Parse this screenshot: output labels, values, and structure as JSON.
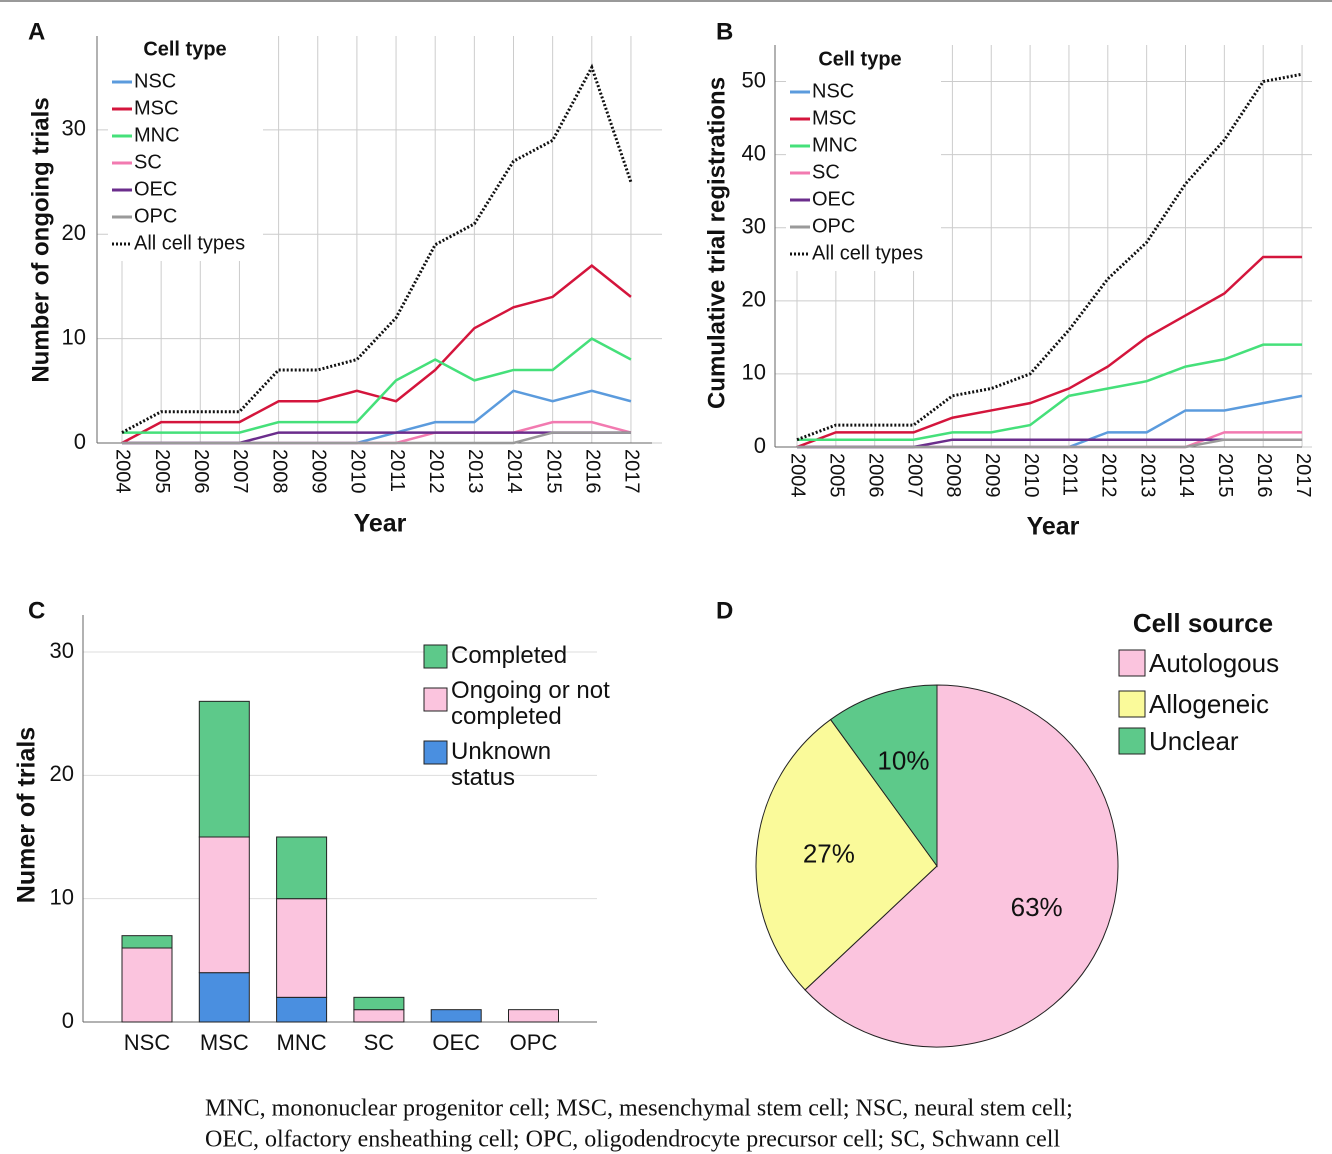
{
  "chart_data": [
    {
      "type": "line",
      "label": "A",
      "xlabel": "Year",
      "ylabel": "Number of ongoing trials",
      "legend_title": "Cell type",
      "grid": true,
      "categories": [
        "2004",
        "2005",
        "2006",
        "2007",
        "2008",
        "2009",
        "2010",
        "2011",
        "2012",
        "2013",
        "2014",
        "2015",
        "2016",
        "2017"
      ],
      "ylim": [
        0,
        39
      ],
      "yticks": [
        0,
        10,
        20,
        30
      ],
      "series": [
        {
          "name": "NSC",
          "color": "#5b9bdd",
          "values": [
            0,
            0,
            0,
            0,
            0,
            0,
            0,
            1,
            2,
            2,
            5,
            4,
            5,
            4
          ]
        },
        {
          "name": "MSC",
          "color": "#d4153c",
          "values": [
            0,
            2,
            2,
            2,
            4,
            4,
            5,
            4,
            7,
            11,
            13,
            14,
            17,
            14
          ]
        },
        {
          "name": "MNC",
          "color": "#45e07a",
          "values": [
            1,
            1,
            1,
            1,
            2,
            2,
            2,
            6,
            8,
            6,
            7,
            7,
            10,
            8
          ]
        },
        {
          "name": "SC",
          "color": "#f27ab0",
          "values": [
            0,
            0,
            0,
            0,
            0,
            0,
            0,
            0,
            1,
            1,
            1,
            2,
            2,
            1
          ]
        },
        {
          "name": "OEC",
          "color": "#6b2d8c",
          "values": [
            0,
            0,
            0,
            0,
            1,
            1,
            1,
            1,
            1,
            1,
            1,
            1,
            1,
            1
          ]
        },
        {
          "name": "OPC",
          "color": "#9a9a9a",
          "values": [
            0,
            0,
            0,
            0,
            0,
            0,
            0,
            0,
            0,
            0,
            0,
            1,
            1,
            1
          ]
        },
        {
          "name": "All cell types",
          "color": "#111111",
          "style": "dotted",
          "values": [
            1,
            3,
            3,
            3,
            7,
            7,
            8,
            12,
            19,
            21,
            27,
            29,
            36,
            25
          ]
        }
      ]
    },
    {
      "type": "line",
      "label": "B",
      "xlabel": "Year",
      "ylabel": "Cumulative trial registrations",
      "legend_title": "Cell type",
      "grid": true,
      "categories": [
        "2004",
        "2005",
        "2006",
        "2007",
        "2008",
        "2009",
        "2010",
        "2011",
        "2012",
        "2013",
        "2014",
        "2015",
        "2016",
        "2017"
      ],
      "ylim": [
        0,
        55
      ],
      "yticks": [
        0,
        10,
        20,
        30,
        40,
        50
      ],
      "series": [
        {
          "name": "NSC",
          "color": "#5b9bdd",
          "values": [
            0,
            0,
            0,
            0,
            0,
            0,
            0,
            0,
            2,
            2,
            5,
            5,
            6,
            7
          ]
        },
        {
          "name": "MSC",
          "color": "#d4153c",
          "values": [
            0,
            2,
            2,
            2,
            4,
            5,
            6,
            8,
            11,
            15,
            18,
            21,
            26,
            26
          ]
        },
        {
          "name": "MNC",
          "color": "#45e07a",
          "values": [
            1,
            1,
            1,
            1,
            2,
            2,
            3,
            7,
            8,
            9,
            11,
            12,
            14,
            14
          ]
        },
        {
          "name": "SC",
          "color": "#f27ab0",
          "values": [
            0,
            0,
            0,
            0,
            0,
            0,
            0,
            0,
            0,
            0,
            0,
            2,
            2,
            2
          ]
        },
        {
          "name": "OEC",
          "color": "#6b2d8c",
          "values": [
            0,
            0,
            0,
            0,
            1,
            1,
            1,
            1,
            1,
            1,
            1,
            1,
            1,
            1
          ]
        },
        {
          "name": "OPC",
          "color": "#9a9a9a",
          "values": [
            0,
            0,
            0,
            0,
            0,
            0,
            0,
            0,
            0,
            0,
            0,
            1,
            1,
            1
          ]
        },
        {
          "name": "All cell types",
          "color": "#111111",
          "style": "dotted",
          "values": [
            1,
            3,
            3,
            3,
            7,
            8,
            10,
            16,
            23,
            28,
            36,
            42,
            50,
            51
          ]
        }
      ]
    },
    {
      "type": "stacked_bar",
      "label": "C",
      "ylabel": "Numer of trials",
      "grid": true,
      "categories": [
        "NSC",
        "MSC",
        "MNC",
        "SC",
        "OEC",
        "OPC"
      ],
      "ylim": [
        0,
        33
      ],
      "yticks": [
        0,
        10,
        20,
        30
      ],
      "series": [
        {
          "name": "Unknown status",
          "color": "#4a8fe0",
          "values": [
            0,
            4,
            2,
            0,
            1,
            0
          ]
        },
        {
          "name": "Ongoing or not completed",
          "color": "#fbc4de",
          "values": [
            6,
            11,
            8,
            1,
            0,
            1
          ]
        },
        {
          "name": "Completed",
          "color": "#5dc98a",
          "values": [
            1,
            11,
            5,
            1,
            0,
            0
          ]
        }
      ]
    },
    {
      "type": "pie",
      "label": "D",
      "legend_title": "Cell source",
      "categories": [
        "Autologous",
        "Allogeneic",
        "Unclear"
      ],
      "values": [
        63,
        27,
        10
      ],
      "value_labels": [
        "63%",
        "27%",
        "10%"
      ],
      "colors": [
        "#fbc4de",
        "#fafa9a",
        "#5dc98a"
      ]
    }
  ],
  "caption": [
    "MNC, mononuclear progenitor cell; MSC, mesenchymal stem cell; NSC, neural stem cell;",
    "OEC, olfactory ensheathing cell; OPC, oligodendrocyte precursor cell; SC, Schwann cell"
  ]
}
